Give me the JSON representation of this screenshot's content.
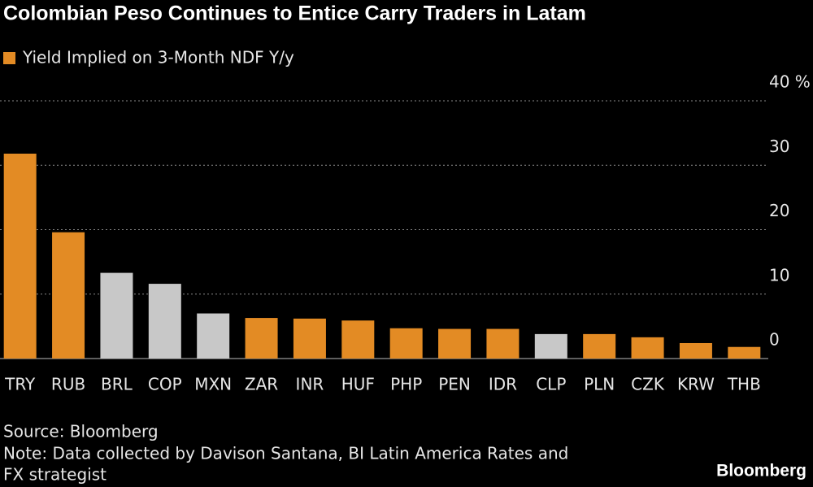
{
  "chart_data": {
    "type": "bar",
    "title": "Colombian Peso Continues to Entice Carry Traders in Latam",
    "categories": [
      "TRY",
      "RUB",
      "BRL",
      "COP",
      "MXN",
      "ZAR",
      "INR",
      "HUF",
      "PHP",
      "PEN",
      "IDR",
      "CLP",
      "PLN",
      "CZK",
      "KRW",
      "THB"
    ],
    "series": [
      {
        "name": "Yield Implied on 3-Month NDF Y/y",
        "color": "#e38b24",
        "values": [
          31.8,
          19.6,
          13.3,
          11.6,
          7.0,
          6.3,
          6.2,
          5.9,
          4.7,
          4.6,
          4.6,
          3.8,
          3.8,
          3.3,
          2.4,
          1.8
        ]
      }
    ],
    "bar_colors": [
      "#e38b24",
      "#e38b24",
      "#c8c8c8",
      "#c8c8c8",
      "#c8c8c8",
      "#e38b24",
      "#e38b24",
      "#e38b24",
      "#e38b24",
      "#e38b24",
      "#e38b24",
      "#c8c8c8",
      "#e38b24",
      "#e38b24",
      "#e38b24",
      "#e38b24"
    ],
    "ylim": [
      0,
      40
    ],
    "yticks": [
      0,
      10,
      20,
      30,
      {
        "value": 40,
        "label": "40 %"
      }
    ],
    "grid": true,
    "source": "Source: Bloomberg",
    "note": [
      "Note: Data collected by Davison Santana, BI Latin America Rates and",
      "FX strategist"
    ],
    "brand": "Bloomberg"
  }
}
